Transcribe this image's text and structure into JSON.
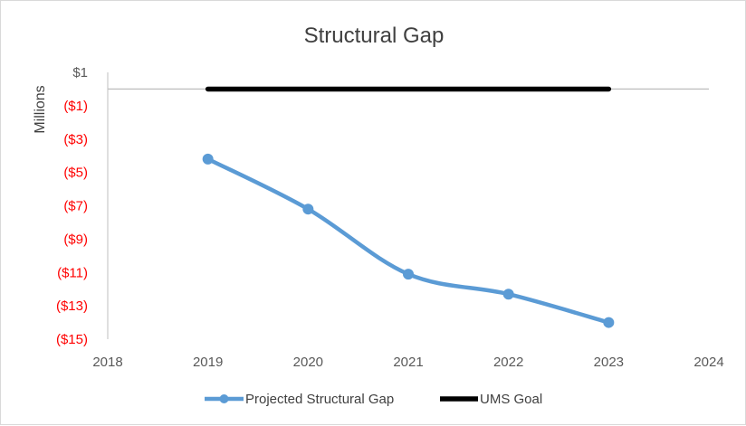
{
  "chart_data": {
    "type": "line",
    "title": "Structural Gap",
    "ylabel": "Millions",
    "xlabel": "",
    "x_ticks": [
      "2018",
      "2019",
      "2020",
      "2021",
      "2022",
      "2023",
      "2024"
    ],
    "xlim": [
      2018,
      2024
    ],
    "ylim": [
      -15,
      1
    ],
    "y_ticks": [
      {
        "value": 1,
        "label": "$1"
      },
      {
        "value": -1,
        "label": "($1)"
      },
      {
        "value": -3,
        "label": "($3)"
      },
      {
        "value": -5,
        "label": "($5)"
      },
      {
        "value": -7,
        "label": "($7)"
      },
      {
        "value": -9,
        "label": "($9)"
      },
      {
        "value": -11,
        "label": "($11)"
      },
      {
        "value": -13,
        "label": "($13)"
      },
      {
        "value": -15,
        "label": "($15)"
      }
    ],
    "series": [
      {
        "name": "Projected Structural Gap",
        "color": "#5b9bd5",
        "markers": true,
        "smooth": true,
        "x": [
          2019,
          2020,
          2021,
          2022,
          2023
        ],
        "values": [
          -4.2,
          -7.2,
          -11.1,
          -12.3,
          -14.0
        ]
      },
      {
        "name": "UMS Goal",
        "color": "#000000",
        "markers": false,
        "smooth": false,
        "x": [
          2019,
          2023
        ],
        "values": [
          0,
          0
        ]
      }
    ],
    "colors": {
      "positive_tick": "#595959",
      "negative_tick": "#ff0000",
      "gridline": "#bfbfbf",
      "axis_text": "#595959"
    },
    "legend_position": "bottom",
    "grid": false
  }
}
